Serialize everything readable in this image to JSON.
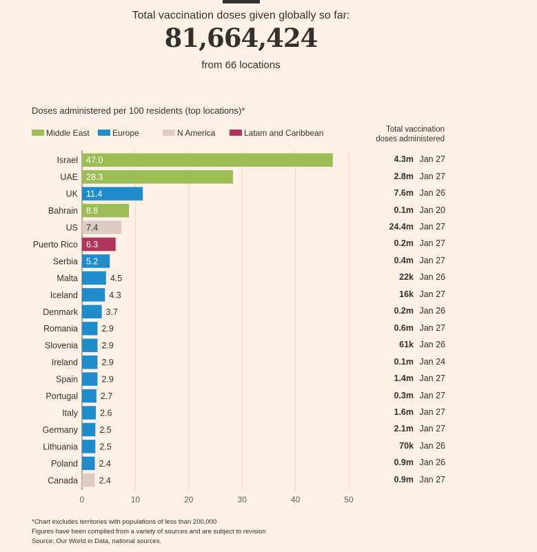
{
  "header": {
    "label": "Total vaccination doses given globally so far:",
    "total": "81,664,424",
    "locations": "from 66 locations"
  },
  "subtitle": "Doses administered per 100 residents (top locations)*",
  "legend": [
    {
      "name": "Middle East",
      "color": "#9dbe57"
    },
    {
      "name": "Europe",
      "color": "#1f8dcc"
    },
    {
      "name": "N America",
      "color": "#d9ccc3"
    },
    {
      "name": "Latam and Caribbean",
      "color": "#b1345d"
    }
  ],
  "right_header": [
    "Total vaccination",
    "doses administered"
  ],
  "chart_data": {
    "type": "bar",
    "orientation": "horizontal",
    "title": "Doses administered per 100 residents (top locations)*",
    "xlabel": "",
    "ylabel": "",
    "xlim": [
      0,
      50
    ],
    "xticks": [
      0,
      10,
      20,
      30,
      40,
      50
    ],
    "grid": true,
    "categories": [
      "Israel",
      "UAE",
      "UK",
      "Bahrain",
      "US",
      "Puerto Rico",
      "Serbia",
      "Malta",
      "Iceland",
      "Denmark",
      "Romania",
      "Slovenia",
      "Ireland",
      "Spain",
      "Portugal",
      "Italy",
      "Germany",
      "Lithuania",
      "Poland",
      "Canada"
    ],
    "values": [
      47.0,
      28.3,
      11.4,
      8.8,
      7.4,
      6.3,
      5.2,
      4.5,
      4.3,
      3.7,
      2.9,
      2.9,
      2.9,
      2.9,
      2.7,
      2.6,
      2.5,
      2.5,
      2.4,
      2.4
    ],
    "labels": [
      "47.0",
      "28.3",
      "11.4",
      "8.8",
      "7.4",
      "6.3",
      "5.2",
      "4.5",
      "4.3",
      "3.7",
      "2.9",
      "2.9",
      "2.9",
      "2.9",
      "2.7",
      "2.6",
      "2.5",
      "2.5",
      "2.4",
      "2.4"
    ],
    "regions": [
      "Middle East",
      "Middle East",
      "Europe",
      "Middle East",
      "N America",
      "Latam and Caribbean",
      "Europe",
      "Europe",
      "Europe",
      "Europe",
      "Europe",
      "Europe",
      "Europe",
      "Europe",
      "Europe",
      "Europe",
      "Europe",
      "Europe",
      "Europe",
      "N America"
    ]
  },
  "table": [
    {
      "doses": "4.3m",
      "date": "Jan 27"
    },
    {
      "doses": "2.8m",
      "date": "Jan 27"
    },
    {
      "doses": "7.6m",
      "date": "Jan 26"
    },
    {
      "doses": "0.1m",
      "date": "Jan 20"
    },
    {
      "doses": "24.4m",
      "date": "Jan 27"
    },
    {
      "doses": "0.2m",
      "date": "Jan 27"
    },
    {
      "doses": "0.4m",
      "date": "Jan 27"
    },
    {
      "doses": "22k",
      "date": "Jan 26"
    },
    {
      "doses": "16k",
      "date": "Jan 27"
    },
    {
      "doses": "0.2m",
      "date": "Jan 26"
    },
    {
      "doses": "0.6m",
      "date": "Jan 27"
    },
    {
      "doses": "61k",
      "date": "Jan 26"
    },
    {
      "doses": "0.1m",
      "date": "Jan 24"
    },
    {
      "doses": "1.4m",
      "date": "Jan 27"
    },
    {
      "doses": "0.3m",
      "date": "Jan 27"
    },
    {
      "doses": "1.6m",
      "date": "Jan 27"
    },
    {
      "doses": "2.1m",
      "date": "Jan 27"
    },
    {
      "doses": "70k",
      "date": "Jan 26"
    },
    {
      "doses": "0.9m",
      "date": "Jan 26"
    },
    {
      "doses": "0.9m",
      "date": "Jan 27"
    }
  ],
  "footer": [
    "*Chart excludes territories with populations of less than 200,000",
    "Figures have been compiled from a variety of sources and are subject to revision",
    "Source: Our World in Data, national sources."
  ]
}
